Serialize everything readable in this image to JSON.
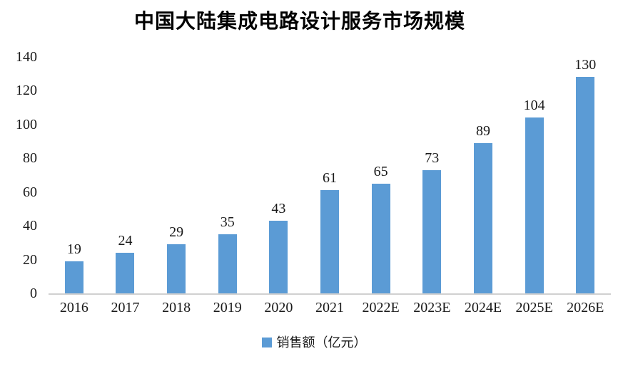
{
  "chart_data": {
    "type": "bar",
    "title": "中国大陆集成电路设计服务市场规模",
    "categories": [
      "2016",
      "2017",
      "2018",
      "2019",
      "2020",
      "2021",
      "2022E",
      "2023E",
      "2024E",
      "2025E",
      "2026E"
    ],
    "values": [
      19,
      24,
      29,
      35,
      43,
      61,
      65,
      73,
      89,
      104,
      130
    ],
    "series_name": "销售额（亿元）",
    "xlabel": "",
    "ylabel": "",
    "ylim": [
      0,
      140
    ],
    "yticks": [
      0,
      20,
      40,
      60,
      80,
      100,
      120,
      140
    ],
    "grid": false,
    "legend_position": "bottom",
    "bar_color": "#5B9BD5",
    "axis_line_color": "#d0d0d0",
    "text_color": "#1a1a1a"
  }
}
